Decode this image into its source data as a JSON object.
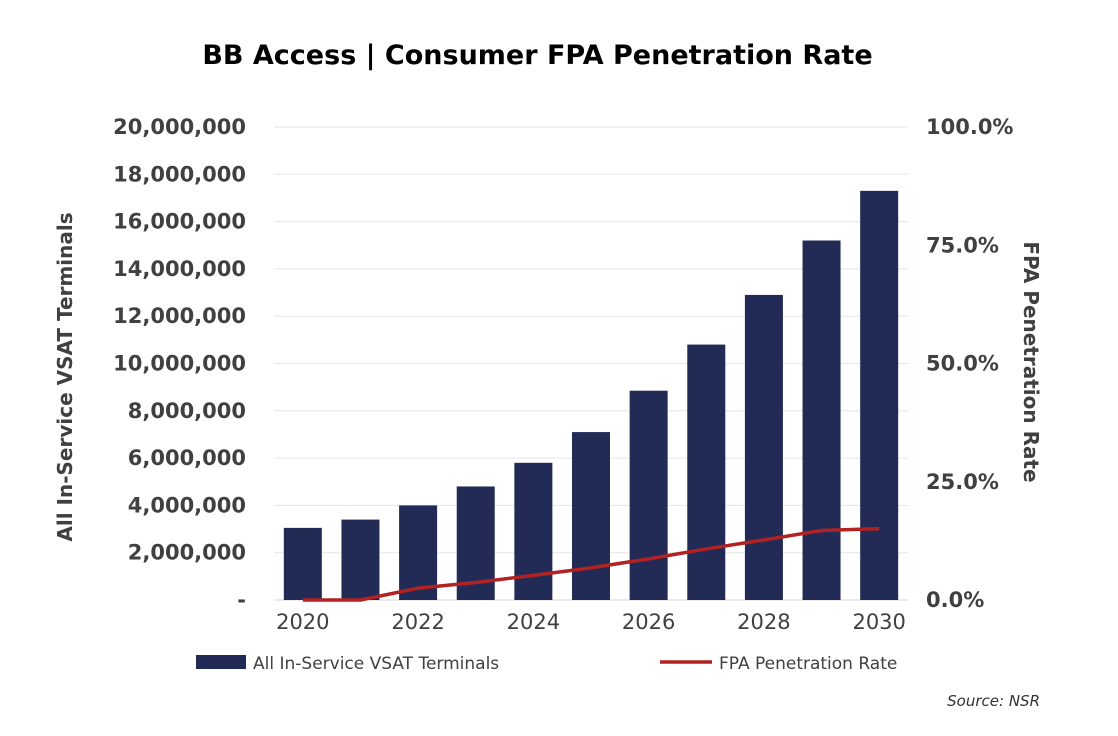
{
  "chart_data": {
    "type": "bar",
    "title": "BB Access | Consumer FPA Penetration Rate",
    "x": [
      2020,
      2021,
      2022,
      2023,
      2024,
      2025,
      2026,
      2027,
      2028,
      2029,
      2030
    ],
    "x_tick_labels": [
      "2020",
      "2022",
      "2024",
      "2026",
      "2028",
      "2030"
    ],
    "series": [
      {
        "name": "All In-Service VSAT Terminals",
        "type": "bar",
        "axis": "left",
        "color": "#222a56",
        "values": [
          3050000,
          3400000,
          4000000,
          4800000,
          5800000,
          7100000,
          8850000,
          10800000,
          12900000,
          15200000,
          17300000
        ]
      },
      {
        "name": "FPA Penetration Rate",
        "type": "line",
        "axis": "right",
        "color": "#b22222",
        "values": [
          0.0,
          0.0,
          0.025,
          0.037,
          0.052,
          0.068,
          0.087,
          0.108,
          0.127,
          0.147,
          0.151
        ]
      }
    ],
    "y_left": {
      "label": "All In-Service VSAT Terminals",
      "ylim": [
        0,
        20000000
      ],
      "tick_labels": [
        "-",
        "2,000,000",
        "4,000,000",
        "6,000,000",
        "8,000,000",
        "10,000,000",
        "12,000,000",
        "14,000,000",
        "16,000,000",
        "18,000,000",
        "20,000,000"
      ]
    },
    "y_right": {
      "label": "FPA Penetration Rate",
      "ylim": [
        0,
        1
      ],
      "tick_labels": [
        "0.0%",
        "25.0%",
        "50.0%",
        "75.0%",
        "100.0%"
      ]
    },
    "grid": true,
    "legend_position": "bottom",
    "source": "Source: NSR"
  }
}
